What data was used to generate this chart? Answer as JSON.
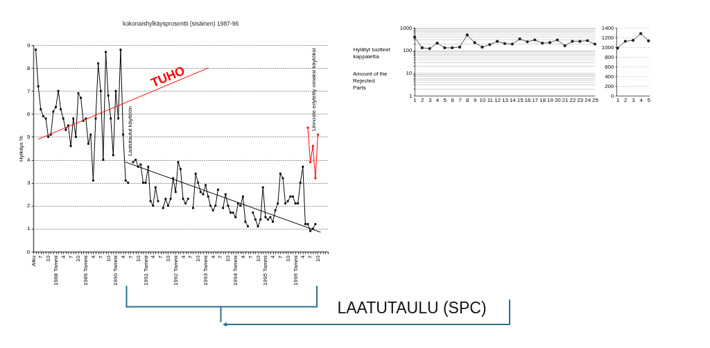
{
  "chart_data": [
    {
      "type": "line",
      "title": "kokonaishylkäysprosentti (sisäinen) 1987-96",
      "ylabel": "Hylkäys %",
      "x": [
        "1987-05",
        "1987-06",
        "1987-07",
        "1987-08",
        "1987-09",
        "1987-10",
        "1987-11",
        "1987-12",
        "1988-01",
        "1988-02",
        "1988-03",
        "1988-04",
        "1988-05",
        "1988-06",
        "1988-07",
        "1988-08",
        "1988-09",
        "1988-10",
        "1988-11",
        "1988-12",
        "1989-01",
        "1989-02",
        "1989-03",
        "1989-04",
        "1989-05",
        "1989-06",
        "1989-07",
        "1989-08",
        "1989-09",
        "1989-10",
        "1989-11",
        "1989-12",
        "1990-01",
        "1990-02",
        "1990-03",
        "1990-04",
        "1990-05",
        "1990-06",
        "1990-07",
        "1990-08",
        "1990-09",
        "1990-10",
        "1990-11",
        "1990-12",
        "1991-01",
        "1991-02",
        "1991-03",
        "1991-04",
        "1991-05",
        "1991-06",
        "1991-07",
        "1991-08",
        "1991-09",
        "1991-10",
        "1991-11",
        "1991-12",
        "1992-01",
        "1992-02",
        "1992-03",
        "1992-04",
        "1992-05",
        "1992-06",
        "1992-07",
        "1992-08",
        "1992-09",
        "1992-10",
        "1992-11",
        "1992-12",
        "1993-01",
        "1993-02",
        "1993-03",
        "1993-04",
        "1993-05",
        "1993-06",
        "1993-07",
        "1993-08",
        "1993-09",
        "1993-10",
        "1993-11",
        "1993-12",
        "1994-01",
        "1994-02",
        "1994-03",
        "1994-04",
        "1994-05",
        "1994-06",
        "1994-07",
        "1994-08",
        "1994-09",
        "1994-10",
        "1994-11",
        "1994-12",
        "1995-01",
        "1995-02",
        "1995-03",
        "1995-04",
        "1995-05",
        "1995-06",
        "1995-07",
        "1995-08",
        "1995-09",
        "1995-10",
        "1995-11",
        "1995-12",
        "1996-01",
        "1996-02",
        "1996-03",
        "1996-04",
        "1996-05",
        "1996-06",
        "1996-07",
        "1996-08",
        "1996-09"
      ],
      "series": [
        {
          "color": "#000000",
          "values": [
            8.8,
            7.2,
            6.2,
            5.9,
            5.8,
            5.0,
            5.1,
            6.1,
            6.3,
            7.0,
            6.2,
            5.8,
            5.3,
            5.5,
            4.6,
            5.8,
            5.0,
            6.9,
            6.7,
            5.7,
            5.8,
            4.7,
            5.1,
            3.1,
            5.8,
            8.2,
            7.0,
            4.0,
            8.7,
            6.8,
            5.8,
            4.2,
            7.0,
            5.8,
            8.8,
            5.1,
            3.1,
            3.0,
            null,
            3.9,
            4.0,
            3.7,
            3.8,
            3.0,
            3.0,
            3.7,
            2.2,
            2.0,
            2.8,
            2.2,
            null,
            1.9,
            2.3,
            2.0,
            2.3,
            3.2,
            2.6,
            3.9,
            3.6,
            2.3,
            2.1,
            2.3,
            null,
            1.9,
            3.4,
            3.0,
            2.6,
            2.5,
            2.9,
            2.4,
            2.0,
            1.8,
            2.0,
            2.7,
            null,
            1.9,
            2.5,
            2.0,
            1.7,
            1.7,
            1.5,
            2.1,
            2.0,
            2.4,
            1.3,
            1.1,
            null,
            1.7,
            1.4,
            1.1,
            1.4,
            2.8,
            1.5,
            1.4,
            1.5,
            1.3,
            1.8,
            2.1,
            3.4,
            3.2,
            2.1,
            2.2,
            2.4,
            2.4,
            2.1,
            2.1,
            3.0,
            3.7,
            1.2,
            1.2,
            0.9,
            1.0,
            1.2
          ]
        },
        {
          "color": "#ff0000",
          "x": [
            "1996-06",
            "1996-07",
            "1996-08",
            "1996-09",
            "1996-10"
          ],
          "values": [
            5.4,
            3.9,
            4.6,
            3.2,
            5.1
          ]
        },
        {
          "name": "TUHO",
          "type": "line",
          "marker": "none",
          "color": "#ff0000",
          "x": [
            "1987-06",
            "1993-02"
          ],
          "values": [
            4.9,
            8.0
          ]
        },
        {
          "type": "line",
          "marker": "none",
          "color": "#000000",
          "x": [
            "1990-05",
            "1996-11"
          ],
          "values": [
            3.9,
            0.85
          ]
        }
      ],
      "xlim": [
        "1987-04",
        "1997-02"
      ],
      "xticks": [
        {
          "value": "1987-04",
          "label": "Alku"
        },
        {
          "value": "1987-05",
          "label": null
        },
        {
          "value": "1987-06",
          "label": null
        },
        {
          "value": "1987-07",
          "label": "7"
        },
        {
          "value": "1987-08",
          "label": null
        },
        {
          "value": "1987-09",
          "label": null
        },
        {
          "value": "1987-10",
          "label": "10"
        },
        {
          "value": "1987-11",
          "label": null
        },
        {
          "value": "1987-12",
          "label": null
        },
        {
          "value": "1988-01",
          "label": "1988 Tammi"
        },
        {
          "value": "1988-02",
          "label": null
        },
        {
          "value": "1988-03",
          "label": null
        },
        {
          "value": "1988-04",
          "label": "4"
        },
        {
          "value": "1988-05",
          "label": null
        },
        {
          "value": "1988-06",
          "label": null
        },
        {
          "value": "1988-07",
          "label": "7"
        },
        {
          "value": "1988-08",
          "label": null
        },
        {
          "value": "1988-09",
          "label": null
        },
        {
          "value": "1988-10",
          "label": "10"
        },
        {
          "value": "1988-11",
          "label": null
        },
        {
          "value": "1988-12",
          "label": null
        },
        {
          "value": "1989-01",
          "label": "1989 Tammi"
        },
        {
          "value": "1989-02",
          "label": null
        },
        {
          "value": "1989-03",
          "label": null
        },
        {
          "value": "1989-04",
          "label": "4"
        },
        {
          "value": "1989-05",
          "label": null
        },
        {
          "value": "1989-06",
          "label": null
        },
        {
          "value": "1989-07",
          "label": "7"
        },
        {
          "value": "1989-08",
          "label": null
        },
        {
          "value": "1989-09",
          "label": null
        },
        {
          "value": "1989-10",
          "label": "10"
        },
        {
          "value": "1989-11",
          "label": null
        },
        {
          "value": "1989-12",
          "label": null
        },
        {
          "value": "1990-01",
          "label": "1990 Tammi"
        },
        {
          "value": "1990-02",
          "label": null
        },
        {
          "value": "1990-03",
          "label": null
        },
        {
          "value": "1990-04",
          "label": "4"
        },
        {
          "value": "1990-05",
          "label": null
        },
        {
          "value": "1990-06",
          "label": null
        },
        {
          "value": "1990-07",
          "label": "7"
        },
        {
          "value": "1990-08",
          "label": null
        },
        {
          "value": "1990-09",
          "label": null
        },
        {
          "value": "1990-10",
          "label": "10"
        },
        {
          "value": "1990-11",
          "label": null
        },
        {
          "value": "1990-12",
          "label": null
        },
        {
          "value": "1991-01",
          "label": "1991 Tammi"
        },
        {
          "value": "1991-02",
          "label": null
        },
        {
          "value": "1991-03",
          "label": null
        },
        {
          "value": "1991-04",
          "label": "4"
        },
        {
          "value": "1991-05",
          "label": null
        },
        {
          "value": "1991-06",
          "label": null
        },
        {
          "value": "1991-07",
          "label": "7"
        },
        {
          "value": "1991-08",
          "label": null
        },
        {
          "value": "1991-09",
          "label": null
        },
        {
          "value": "1991-10",
          "label": "10"
        },
        {
          "value": "1991-11",
          "label": null
        },
        {
          "value": "1991-12",
          "label": null
        },
        {
          "value": "1992-01",
          "label": "1992 Tammi"
        },
        {
          "value": "1992-02",
          "label": null
        },
        {
          "value": "1992-03",
          "label": null
        },
        {
          "value": "1992-04",
          "label": "4"
        },
        {
          "value": "1992-05",
          "label": null
        },
        {
          "value": "1992-06",
          "label": null
        },
        {
          "value": "1992-07",
          "label": "7"
        },
        {
          "value": "1992-08",
          "label": null
        },
        {
          "value": "1992-09",
          "label": null
        },
        {
          "value": "1992-10",
          "label": "10"
        },
        {
          "value": "1992-11",
          "label": null
        },
        {
          "value": "1992-12",
          "label": null
        },
        {
          "value": "1993-01",
          "label": "1993 Tammi"
        },
        {
          "value": "1993-02",
          "label": null
        },
        {
          "value": "1993-03",
          "label": null
        },
        {
          "value": "1993-04",
          "label": "4"
        },
        {
          "value": "1993-05",
          "label": null
        },
        {
          "value": "1993-06",
          "label": null
        },
        {
          "value": "1993-07",
          "label": "7"
        },
        {
          "value": "1993-08",
          "label": null
        },
        {
          "value": "1993-09",
          "label": null
        },
        {
          "value": "1993-10",
          "label": "10"
        },
        {
          "value": "1993-11",
          "label": null
        },
        {
          "value": "1993-12",
          "label": null
        },
        {
          "value": "1994-01",
          "label": "1994 Tammi"
        },
        {
          "value": "1994-02",
          "label": null
        },
        {
          "value": "1994-03",
          "label": null
        },
        {
          "value": "1994-04",
          "label": "4"
        },
        {
          "value": "1994-05",
          "label": null
        },
        {
          "value": "1994-06",
          "label": null
        },
        {
          "value": "1994-07",
          "label": "7"
        },
        {
          "value": "1994-08",
          "label": null
        },
        {
          "value": "1994-09",
          "label": null
        },
        {
          "value": "1994-10",
          "label": "10"
        },
        {
          "value": "1994-11",
          "label": null
        },
        {
          "value": "1994-12",
          "label": null
        },
        {
          "value": "1995-01",
          "label": "1995 Tammi"
        },
        {
          "value": "1995-02",
          "label": null
        },
        {
          "value": "1995-03",
          "label": null
        },
        {
          "value": "1995-04",
          "label": "4"
        },
        {
          "value": "1995-05",
          "label": null
        },
        {
          "value": "1995-06",
          "label": null
        },
        {
          "value": "1995-07",
          "label": "7"
        },
        {
          "value": "1995-08",
          "label": null
        },
        {
          "value": "1995-09",
          "label": null
        },
        {
          "value": "1995-10",
          "label": "10"
        },
        {
          "value": "1995-11",
          "label": null
        },
        {
          "value": "1995-12",
          "label": null
        },
        {
          "value": "1996-01",
          "label": "1996 Tammi"
        },
        {
          "value": "1996-02",
          "label": null
        },
        {
          "value": "1996-03",
          "label": null
        },
        {
          "value": "1996-04",
          "label": "4"
        },
        {
          "value": "1996-05",
          "label": null
        },
        {
          "value": "1996-06",
          "label": null
        },
        {
          "value": "1996-07",
          "label": "7"
        },
        {
          "value": "1996-08",
          "label": null
        },
        {
          "value": "1996-09",
          "label": null
        },
        {
          "value": "1996-10",
          "label": "10"
        },
        {
          "value": "1996-11",
          "label": null
        },
        {
          "value": "1996-12",
          "label": null
        },
        {
          "value": "1997-01",
          "label": null
        },
        {
          "value": "1997-02",
          "label": null
        }
      ],
      "ylim": [
        0,
        9
      ],
      "yticks": [
        0,
        1,
        2,
        3,
        4,
        5,
        6,
        7,
        8,
        9
      ],
      "grid": "y",
      "marker": "square",
      "annotations": [
        "Laatutaulut käyttöön",
        "Linnoste eriytetty omaksi käytöksi",
        "LAATUTAULU (SPC)"
      ]
    },
    {
      "type": "line",
      "ylabel": "Hylätyt tuotteet kappaletta",
      "x": [
        1,
        2,
        3,
        4,
        5,
        6,
        7,
        8,
        9,
        10,
        11,
        12,
        13,
        14,
        15,
        16,
        17,
        18,
        19,
        20,
        21,
        22,
        23,
        24,
        25
      ],
      "series": [
        {
          "color": "#222222",
          "values": [
            380,
            130,
            120,
            210,
            130,
            130,
            140,
            480,
            220,
            140,
            180,
            250,
            200,
            190,
            320,
            240,
            290,
            210,
            220,
            290,
            160,
            250,
            250,
            270,
            190
          ]
        }
      ],
      "xlim": [
        1,
        25
      ],
      "xticks": [
        1,
        2,
        3,
        4,
        5,
        6,
        7,
        8,
        9,
        10,
        11,
        12,
        13,
        14,
        15,
        16,
        17,
        18,
        19,
        20,
        21,
        22,
        23,
        24,
        25
      ],
      "ylim": [
        1,
        1000
      ],
      "yticks": [
        1,
        {
          "value": 2,
          "label": null
        },
        {
          "value": 3,
          "label": null
        },
        {
          "value": 4,
          "label": null
        },
        {
          "value": 5,
          "label": null
        },
        {
          "value": 6,
          "label": null
        },
        {
          "value": 7,
          "label": null
        },
        {
          "value": 8,
          "label": null
        },
        {
          "value": 9,
          "label": null
        },
        10,
        {
          "value": 20,
          "label": null
        },
        {
          "value": 30,
          "label": null
        },
        {
          "value": 40,
          "label": null
        },
        {
          "value": 50,
          "label": null
        },
        {
          "value": 60,
          "label": null
        },
        {
          "value": 70,
          "label": null
        },
        {
          "value": 80,
          "label": null
        },
        {
          "value": 90,
          "label": null
        },
        100,
        {
          "value": 200,
          "label": null
        },
        {
          "value": 300,
          "label": null
        },
        {
          "value": 400,
          "label": null
        },
        {
          "value": 500,
          "label": null
        },
        {
          "value": 600,
          "label": null
        },
        {
          "value": 700,
          "label": null
        },
        {
          "value": 800,
          "label": null
        },
        {
          "value": 900,
          "label": null
        },
        1000
      ],
      "log": "y",
      "grid": "y",
      "marker": "circle",
      "annotations": [
        "Amount of the Rejected Parts"
      ]
    },
    {
      "type": "line",
      "x": [
        1,
        2,
        3,
        4,
        5
      ],
      "series": [
        {
          "color": "#222222",
          "values": [
            980,
            1120,
            1140,
            1280,
            1130
          ]
        }
      ],
      "xlim": [
        0.85,
        5.15
      ],
      "xticks": [
        1,
        2,
        3,
        4,
        5
      ],
      "ylim": [
        0,
        1400
      ],
      "yticks": [
        0,
        200,
        400,
        600,
        800,
        1000,
        1200,
        1400
      ],
      "grid": "y",
      "marker": "circle"
    }
  ]
}
